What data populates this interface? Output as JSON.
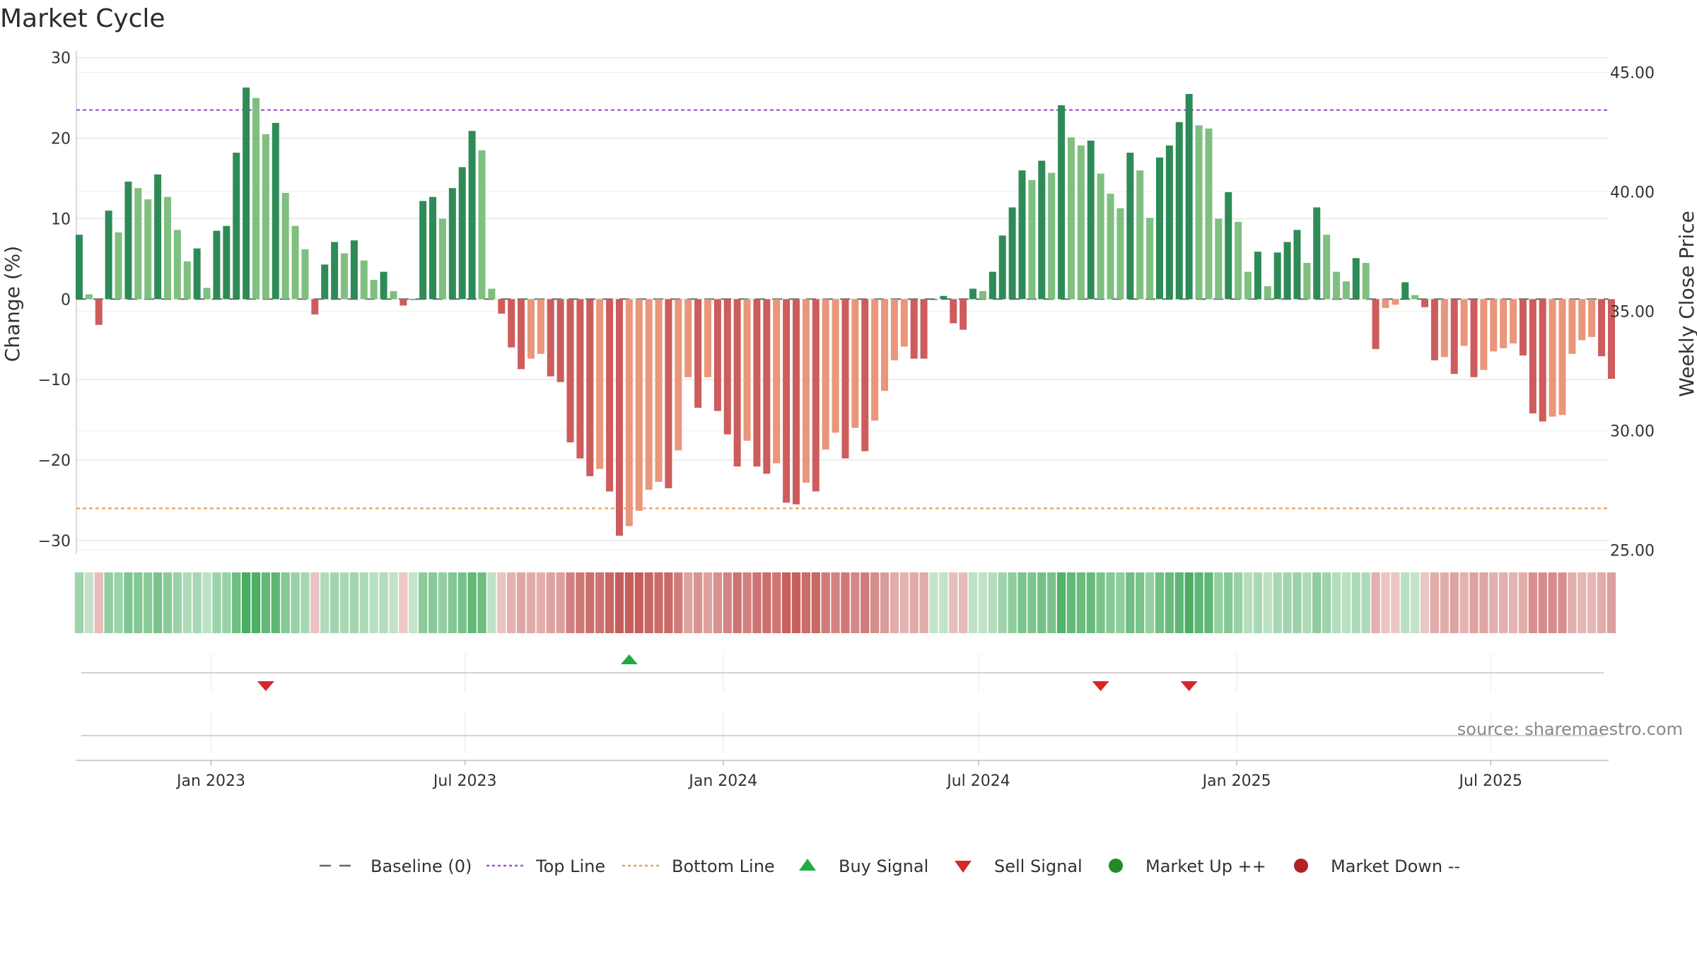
{
  "title": "Market Cycle",
  "source_text": "source: sharemaestro.com",
  "chart_data": {
    "type": "bar",
    "title": "Market Cycle",
    "ylabel_left": "Change (%)",
    "ylabel_right": "Weekly Close Price",
    "ylim": [
      -31.5,
      30.5
    ],
    "yticks": [
      30,
      20,
      10,
      0,
      -10,
      -20,
      -30
    ],
    "ytick_labels": [
      "30",
      "20",
      "10",
      "0",
      "−10",
      "−20",
      "−30"
    ],
    "y2lim": [
      24.9,
      45.78
    ],
    "y2ticks": [
      45,
      40,
      35,
      30,
      25
    ],
    "y2tick_labels": [
      "45.00",
      "40.00",
      "35.00",
      "30.00",
      "25.00"
    ],
    "top_line": 23.5,
    "bottom_line": -26,
    "baseline": 0,
    "x_start": "2022-09-29",
    "x_step_days": 7,
    "x_min": "2022-09-27",
    "x_max": "2025-09-23",
    "x_ticks": [
      "2023-01-01",
      "2023-07-01",
      "2024-01-01",
      "2024-07-01",
      "2025-01-01",
      "2025-07-01"
    ],
    "x_tick_labels": [
      "Jan 2023",
      "Jul 2023",
      "Jan 2024",
      "Jul 2024",
      "Jan 2025",
      "Jul 2025"
    ],
    "values": [
      8,
      0.6,
      -3.2,
      11,
      8.3,
      14.6,
      13.8,
      12.4,
      15.5,
      12.7,
      8.6,
      4.7,
      6.3,
      1.4,
      8.5,
      9.1,
      18.2,
      26.3,
      25,
      20.5,
      21.9,
      13.2,
      9.1,
      6.2,
      -1.9,
      4.3,
      7.1,
      5.7,
      7.3,
      4.8,
      2.4,
      3.4,
      1,
      -0.8,
      0,
      12.2,
      12.7,
      10,
      13.8,
      16.4,
      20.9,
      18.5,
      1.3,
      -1.8,
      -6,
      -8.7,
      -7.4,
      -6.8,
      -9.6,
      -10.3,
      -17.8,
      -19.8,
      -22,
      -21.1,
      -23.9,
      -29.4,
      -28.2,
      -26.3,
      -23.7,
      -22.7,
      -23.5,
      -18.8,
      -9.7,
      -13.5,
      -9.7,
      -13.9,
      -16.8,
      -20.8,
      -17.6,
      -20.8,
      -21.7,
      -20.4,
      -25.3,
      -25.5,
      -22.8,
      -23.9,
      -18.7,
      -16.6,
      -19.8,
      -16,
      -18.9,
      -15.1,
      -11.4,
      -7.6,
      -5.9,
      -7.4,
      -7.4,
      0,
      0.4,
      -3,
      -3.8,
      1.3,
      1,
      3.4,
      7.9,
      11.4,
      16,
      14.8,
      17.2,
      15.7,
      24.1,
      20.1,
      19.1,
      19.7,
      15.6,
      13.1,
      11.3,
      18.2,
      16,
      10.1,
      17.6,
      19.1,
      22,
      25.5,
      21.6,
      21.2,
      10,
      13.3,
      9.6,
      3.4,
      5.9,
      1.6,
      5.8,
      7.1,
      8.6,
      4.5,
      11.4,
      8,
      3.4,
      2.2,
      5.1,
      4.5,
      -6.2,
      -1.1,
      -0.7,
      2.1,
      0.5,
      -1,
      -7.6,
      -7.2,
      -9.3,
      -5.8,
      -9.7,
      -8.8,
      -6.5,
      -6.1,
      -5.5,
      -7,
      -14.2,
      -15.2,
      -14.6,
      -14.4,
      -6.8,
      -5.1,
      -4.7,
      -7.1,
      -9.9
    ],
    "signals": [
      {
        "type": "sell",
        "date": "2023-02-09"
      },
      {
        "type": "buy",
        "date": "2023-10-26"
      },
      {
        "type": "sell",
        "date": "2024-09-26"
      },
      {
        "type": "sell",
        "date": "2024-11-28"
      }
    ],
    "colors": {
      "up_strong": "#2e8b57",
      "up_weak": "#7fbf7f",
      "down_strong": "#cd5c5c",
      "down_weak": "#e9967a",
      "top_line": "#9955cc",
      "bottom_line": "#e8a060",
      "baseline": "#666666",
      "buy": "#22aa44",
      "sell": "#d62728",
      "market_up": "#228b22",
      "market_down": "#b22222",
      "grid": "#e6e6e6"
    },
    "legend": [
      {
        "label": "Baseline (0)",
        "marker": "dash-line",
        "color": "#666666"
      },
      {
        "label": "Top Line",
        "marker": "dot-line",
        "color": "#9955cc"
      },
      {
        "label": "Bottom Line",
        "marker": "dot-line",
        "color": "#e8a060"
      },
      {
        "label": "Buy Signal",
        "marker": "triangle-up",
        "color": "#22aa44"
      },
      {
        "label": "Sell Signal",
        "marker": "triangle-down",
        "color": "#d62728"
      },
      {
        "label": "Market Up ++",
        "marker": "circle",
        "color": "#228b22"
      },
      {
        "label": "Market Down --",
        "marker": "circle",
        "color": "#b22222"
      }
    ]
  }
}
